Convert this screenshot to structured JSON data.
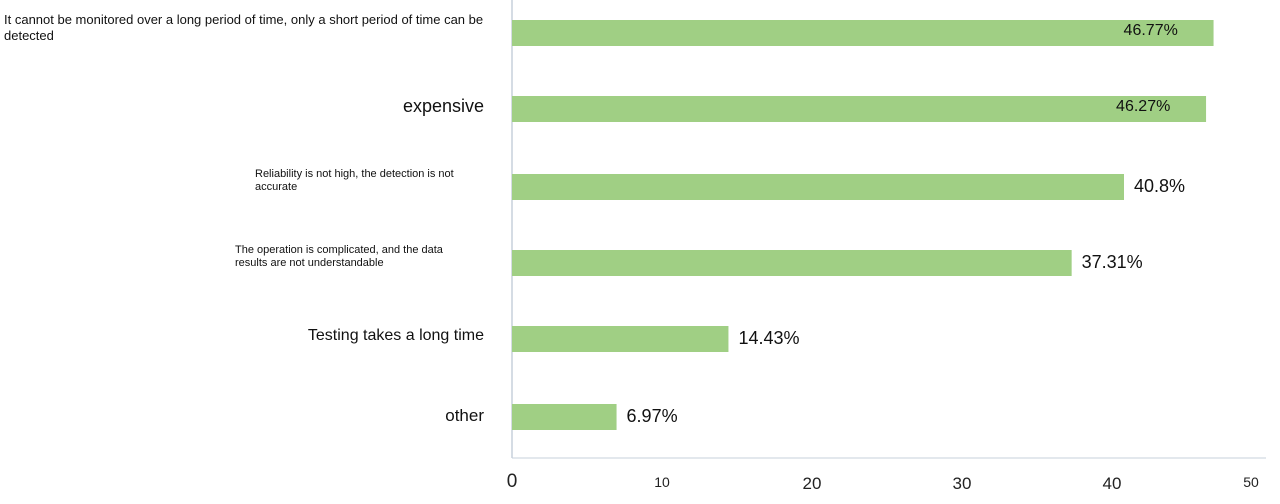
{
  "chart_data": {
    "type": "bar",
    "orientation": "horizontal",
    "title": "",
    "xlabel": "",
    "ylabel": "",
    "xlim": [
      0,
      50
    ],
    "xticks": [
      0,
      10,
      20,
      30,
      40,
      50
    ],
    "grid": false,
    "bar_color": "#a0cf84",
    "axis_color": "#c7d0db",
    "categories": [
      "It cannot be monitored over a long period of time, only a short period of time can be detected",
      "expensive",
      "Reliability is not high, the detection is not accurate",
      "The operation is complicated, and the data results are not understandable",
      "Testing takes a long time",
      "other"
    ],
    "values": [
      46.77,
      46.27,
      40.8,
      37.31,
      14.43,
      6.97
    ],
    "value_labels": [
      "46.77%",
      "46.27%",
      "40.8%",
      "37.31%",
      "14.43%",
      "6.97%"
    ]
  }
}
